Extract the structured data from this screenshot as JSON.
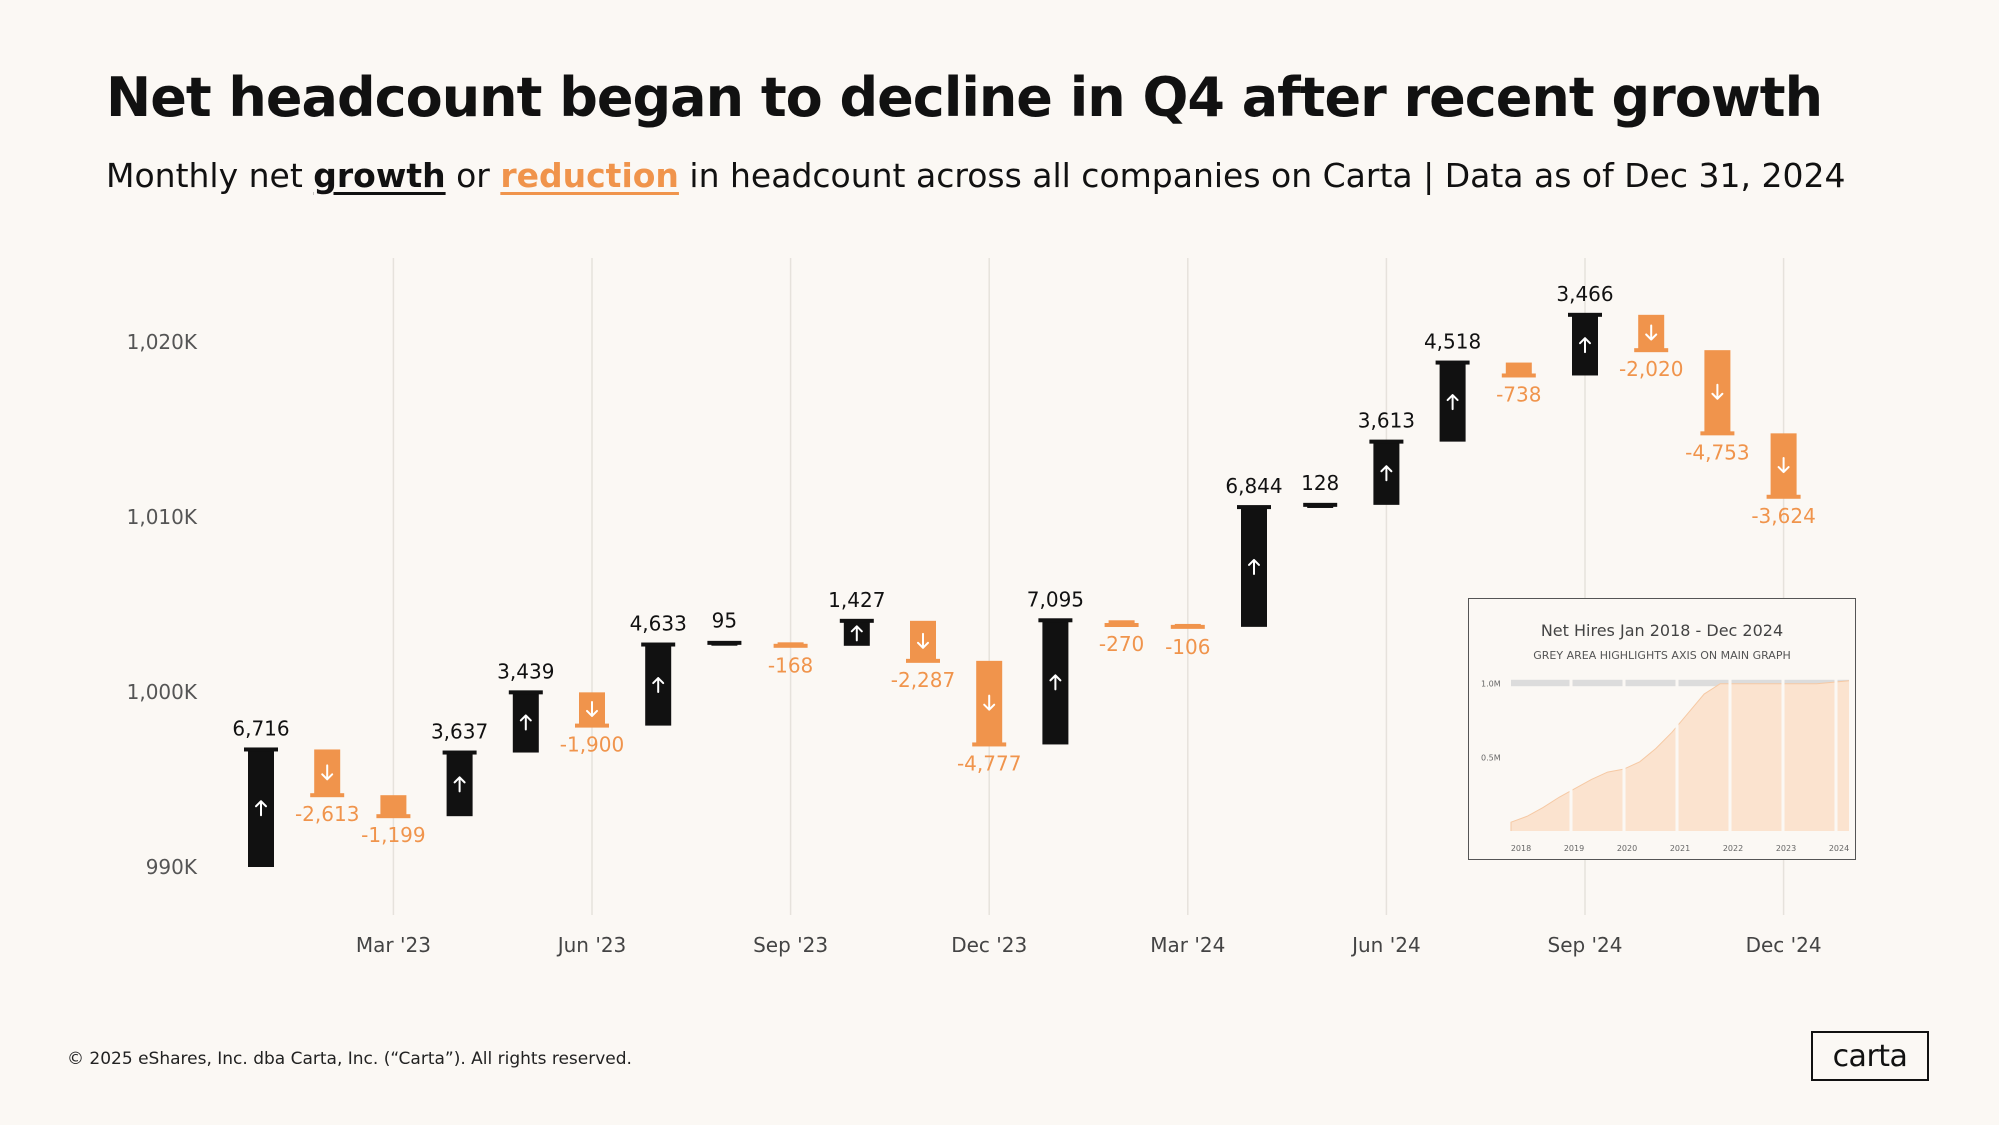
{
  "header": {
    "title": "Net headcount began to decline in Q4 after recent growth",
    "subtitle_pre": "Monthly net ",
    "subtitle_growth": "growth",
    "subtitle_or": " or ",
    "subtitle_reduction": "reduction",
    "subtitle_post": " in headcount across all companies on Carta",
    "subtitle_sep": " | ",
    "subtitle_date": "Data as of Dec 31, 2024"
  },
  "colors": {
    "growth": "#111111",
    "reduction": "#f0944c",
    "background": "#fbf8f4",
    "gridline": "#e6e2dc"
  },
  "chart_data": {
    "type": "waterfall",
    "title": "Net headcount began to decline in Q4 after recent growth",
    "ylim": [
      987500,
      1024000
    ],
    "y_ticks": [
      990000,
      1000000,
      1010000,
      1020000
    ],
    "y_tick_labels": [
      "990K",
      "1,000K",
      "1,010K",
      "1,020K"
    ],
    "x_tick_labels": [
      {
        "label": "Mar '23",
        "month_index": 2
      },
      {
        "label": "Jun '23",
        "month_index": 5
      },
      {
        "label": "Sep '23",
        "month_index": 8
      },
      {
        "label": "Dec '23",
        "month_index": 11
      },
      {
        "label": "Mar '24",
        "month_index": 14
      },
      {
        "label": "Jun '24",
        "month_index": 17
      },
      {
        "label": "Sep '24",
        "month_index": 20
      },
      {
        "label": "Dec '24",
        "month_index": 23
      }
    ],
    "start_value": 990000,
    "months": [
      "Jan '23",
      "Feb '23",
      "Mar '23",
      "Apr '23",
      "May '23",
      "Jun '23",
      "Jul '23",
      "Aug '23",
      "Sep '23",
      "Oct '23",
      "Nov '23",
      "Dec '23",
      "Jan '24",
      "Feb '24",
      "Mar '24",
      "Apr '24",
      "May '24",
      "Jun '24",
      "Jul '24",
      "Aug '24",
      "Sep '24",
      "Oct '24",
      "Nov '24",
      "Dec '24"
    ],
    "changes": [
      6716,
      -2613,
      -1199,
      3637,
      3439,
      -1900,
      4633,
      95,
      -168,
      1427,
      -2287,
      -4777,
      7095,
      -270,
      -106,
      6844,
      128,
      3613,
      4518,
      -738,
      3466,
      -2020,
      -4753,
      -3624
    ],
    "labels": [
      "6,716",
      "-2,613",
      "-1,199",
      "3,637",
      "3,439",
      "-1,900",
      "4,633",
      "95",
      "-168",
      "1,427",
      "-2,287",
      "-4,777",
      "7,095",
      "-270",
      "-106",
      "6,844",
      "128",
      "3,613",
      "4,518",
      "-738",
      "3,466",
      "-2,020",
      "-4,753",
      "-3,624"
    ]
  },
  "inset": {
    "title": "Net Hires Jan 2018 - Dec 2024",
    "subtitle": "GREY AREA HIGHLIGHTS AXIS ON MAIN GRAPH",
    "chart_data": {
      "type": "area",
      "x_labels": [
        "2018",
        "2019",
        "2020",
        "2021",
        "2022",
        "2023",
        "2024"
      ],
      "y_tick_labels": [
        "0.5M",
        "1.0M"
      ],
      "ylim": [
        0,
        1.1
      ],
      "series": [
        0.06,
        0.1,
        0.16,
        0.23,
        0.29,
        0.35,
        0.4,
        0.42,
        0.47,
        0.56,
        0.67,
        0.8,
        0.93,
        1.0,
        1.0,
        1.0,
        1.0,
        1.0,
        1.0,
        1.0,
        1.01,
        1.02
      ],
      "highlight_range": [
        0.99,
        1.02
      ]
    }
  },
  "footer": {
    "copyright": "© 2025 eShares, Inc. dba Carta, Inc. (“Carta”). All rights reserved.",
    "logo": "carta"
  }
}
